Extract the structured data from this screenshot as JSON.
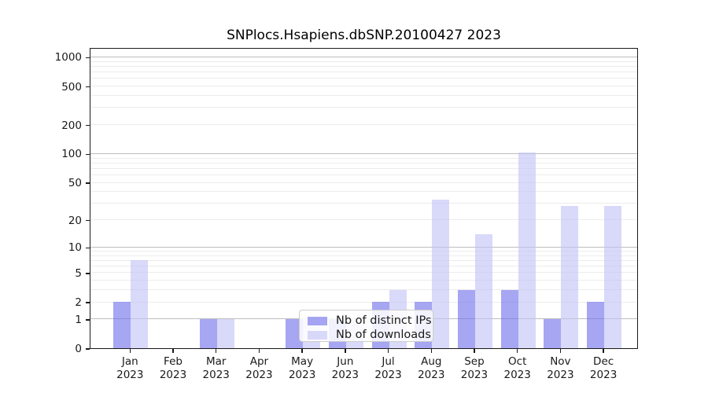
{
  "chart_data": {
    "type": "bar",
    "title": "SNPlocs.Hsapiens.dbSNP.20100427 2023",
    "categories": [
      "Jan 2023",
      "Feb 2023",
      "Mar 2023",
      "Apr 2023",
      "May 2023",
      "Jun 2023",
      "Jul 2023",
      "Aug 2023",
      "Sep 2023",
      "Oct 2023",
      "Nov 2023",
      "Dec 2023"
    ],
    "series": [
      {
        "key": "distinct-ips",
        "name": "Nb of distinct IPs",
        "color": "#7070ec",
        "alpha": 0.62,
        "css": "rgba(112,112,236,0.62)",
        "values": [
          2,
          0,
          1,
          0,
          1,
          1,
          2,
          2,
          3,
          3,
          1,
          2
        ]
      },
      {
        "key": "downloads",
        "name": "Nb of downloads",
        "color": "#c2c2f5",
        "alpha": 0.62,
        "css": "rgba(194,194,245,0.62)",
        "values": [
          7,
          0,
          1,
          0,
          1,
          1,
          3,
          33,
          14,
          103,
          28,
          28
        ]
      }
    ],
    "y_ticks": [
      0,
      1,
      2,
      5,
      10,
      20,
      50,
      100,
      200,
      500,
      1000
    ],
    "y_scale": "log10(1+x)",
    "ylim": [
      0,
      1260
    ],
    "xlabel": "",
    "ylabel": "",
    "grid": true,
    "legend_position": "inside-bottom-center"
  },
  "colors": {
    "grid_major": "#bdbdbd",
    "grid_minor": "#ececec",
    "spine": "#1a1a1a",
    "text": "#1a1a1a",
    "legend_bg": "rgba(255,255,255,0.85)",
    "legend_border": "#cccccc"
  }
}
